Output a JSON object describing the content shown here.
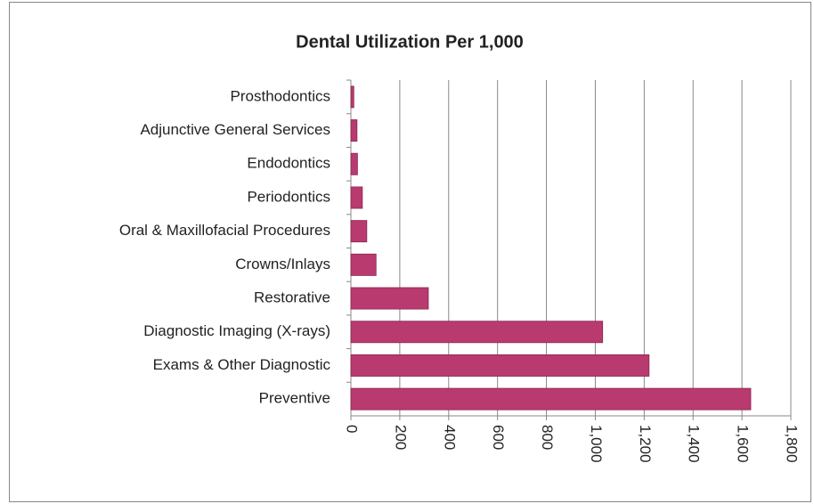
{
  "chart_data": {
    "type": "bar",
    "orientation": "horizontal",
    "title": "Dental Utilization Per 1,000",
    "categories": [
      "Prosthodontics",
      "Adjunctive General Services",
      "Endodontics",
      "Periodontics",
      "Oral & Maxillofacial Procedures",
      "Crowns/Inlays",
      "Restorative",
      "Diagnostic Imaging (X-rays)",
      "Exams & Other Diagnostic",
      "Preventive"
    ],
    "values": [
      12,
      25,
      27,
      47,
      65,
      103,
      317,
      1030,
      1220,
      1636
    ],
    "color": "#b83a6e",
    "xlim": [
      0,
      1800
    ],
    "xticks": [
      0,
      200,
      400,
      600,
      800,
      {
        "value": 1000,
        "label": "1,000"
      },
      {
        "value": 1200,
        "label": "1,200"
      },
      {
        "value": 1400,
        "label": "1,400"
      },
      {
        "value": 1600,
        "label": "1,600"
      },
      {
        "value": 1800,
        "label": "1,800"
      }
    ],
    "grid": true
  }
}
